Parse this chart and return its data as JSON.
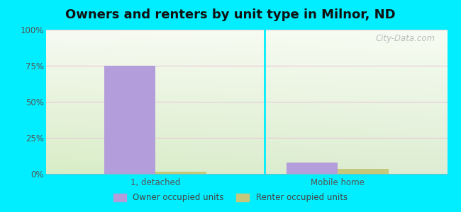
{
  "title": "Owners and renters by unit type in Milnor, ND",
  "categories": [
    "1, detached",
    "Mobile home"
  ],
  "owner_values": [
    75.0,
    8.0
  ],
  "renter_values": [
    1.5,
    3.5
  ],
  "owner_color": "#b39ddb",
  "renter_color": "#c5c87a",
  "bar_width": 0.28,
  "ylim": [
    0,
    100
  ],
  "yticks": [
    0,
    25,
    50,
    75,
    100
  ],
  "ytick_labels": [
    "0%",
    "25%",
    "50%",
    "75%",
    "100%"
  ],
  "outer_bg": "#00eeff",
  "watermark": "City-Data.com",
  "legend_labels": [
    "Owner occupied units",
    "Renter occupied units"
  ],
  "grid_color": "#e8c8d8",
  "title_fontsize": 13
}
